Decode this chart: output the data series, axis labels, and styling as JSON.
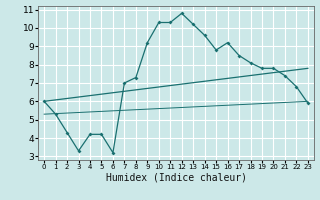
{
  "title": "",
  "xlabel": "Humidex (Indice chaleur)",
  "ylabel": "",
  "xlim": [
    -0.5,
    23.5
  ],
  "ylim": [
    2.8,
    11.2
  ],
  "xticks": [
    0,
    1,
    2,
    3,
    4,
    5,
    6,
    7,
    8,
    9,
    10,
    11,
    12,
    13,
    14,
    15,
    16,
    17,
    18,
    19,
    20,
    21,
    22,
    23
  ],
  "yticks": [
    3,
    4,
    5,
    6,
    7,
    8,
    9,
    10,
    11
  ],
  "bg_color": "#cce8e8",
  "line_color": "#1a7070",
  "grid_color": "#ffffff",
  "line1_x": [
    0,
    1,
    2,
    3,
    4,
    5,
    6,
    7,
    8,
    9,
    10,
    11,
    12,
    13,
    14,
    15,
    16,
    17,
    18,
    19,
    20,
    21,
    22,
    23
  ],
  "line1_y": [
    6.0,
    5.3,
    4.3,
    3.3,
    4.2,
    4.2,
    3.2,
    7.0,
    7.3,
    9.2,
    10.3,
    10.3,
    10.8,
    10.2,
    9.6,
    8.8,
    9.2,
    8.5,
    8.1,
    7.8,
    7.8,
    7.4,
    6.8,
    5.9
  ],
  "line2_x": [
    0,
    23
  ],
  "line2_y": [
    6.0,
    7.8
  ],
  "line3_x": [
    0,
    23
  ],
  "line3_y": [
    5.3,
    6.0
  ],
  "xtick_fontsize": 5.0,
  "ytick_fontsize": 6.5,
  "xlabel_fontsize": 7.0
}
